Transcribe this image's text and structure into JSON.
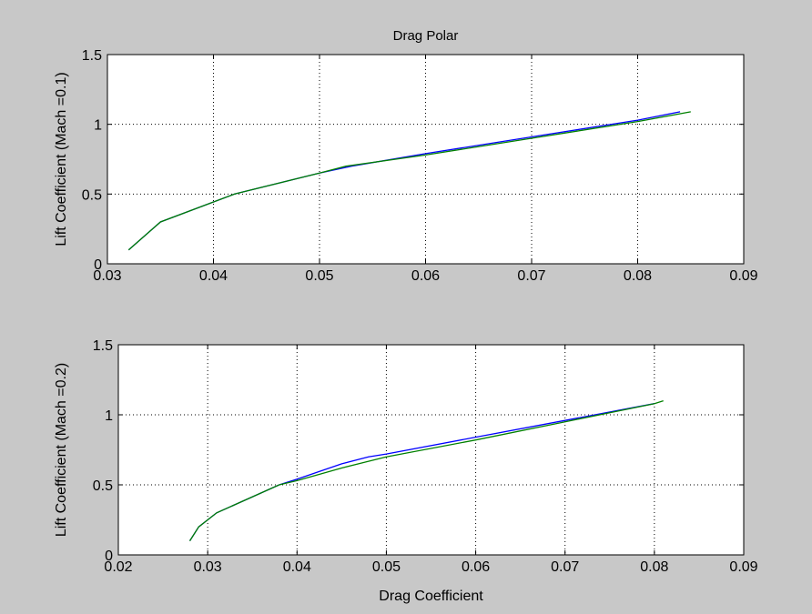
{
  "chart_data": [
    {
      "type": "line",
      "title": "Drag Polar",
      "xlabel": "",
      "ylabel": "Lift Coefficient (Mach =0.1)",
      "xlim": [
        0.03,
        0.09
      ],
      "ylim": [
        0,
        1.5
      ],
      "xticks": [
        "0.03",
        "0.04",
        "0.05",
        "0.06",
        "0.07",
        "0.08",
        "0.09"
      ],
      "yticks": [
        "0",
        "0.5",
        "1",
        "1.5"
      ],
      "grid": true,
      "series": [
        {
          "color": "#0000ff",
          "x": [
            0.032,
            0.035,
            0.042,
            0.05,
            0.053,
            0.06,
            0.07,
            0.08,
            0.084
          ],
          "y": [
            0.1,
            0.3,
            0.5,
            0.65,
            0.7,
            0.79,
            0.91,
            1.03,
            1.09
          ]
        },
        {
          "color": "#008000",
          "x": [
            0.032,
            0.035,
            0.042,
            0.05,
            0.0525,
            0.06,
            0.07,
            0.08,
            0.085
          ],
          "y": [
            0.1,
            0.3,
            0.5,
            0.65,
            0.7,
            0.78,
            0.9,
            1.02,
            1.09
          ]
        }
      ]
    },
    {
      "type": "line",
      "title": "",
      "xlabel": "Drag Coefficient",
      "ylabel": "Lift Coefficient (Mach =0.2)",
      "xlim": [
        0.02,
        0.09
      ],
      "ylim": [
        0,
        1.5
      ],
      "xticks": [
        "0.02",
        "0.03",
        "0.04",
        "0.05",
        "0.06",
        "0.07",
        "0.08",
        "0.09"
      ],
      "yticks": [
        "0",
        "0.5",
        "1",
        "1.5"
      ],
      "grid": true,
      "series": [
        {
          "color": "#0000ff",
          "x": [
            0.028,
            0.029,
            0.031,
            0.038,
            0.04,
            0.045,
            0.048,
            0.05,
            0.06,
            0.07,
            0.08
          ],
          "y": [
            0.1,
            0.2,
            0.3,
            0.5,
            0.54,
            0.65,
            0.7,
            0.72,
            0.84,
            0.96,
            1.08
          ]
        },
        {
          "color": "#008000",
          "x": [
            0.028,
            0.029,
            0.031,
            0.038,
            0.04,
            0.045,
            0.05,
            0.06,
            0.07,
            0.08,
            0.081
          ],
          "y": [
            0.1,
            0.2,
            0.3,
            0.5,
            0.53,
            0.62,
            0.7,
            0.82,
            0.95,
            1.08,
            1.1
          ]
        }
      ]
    }
  ]
}
